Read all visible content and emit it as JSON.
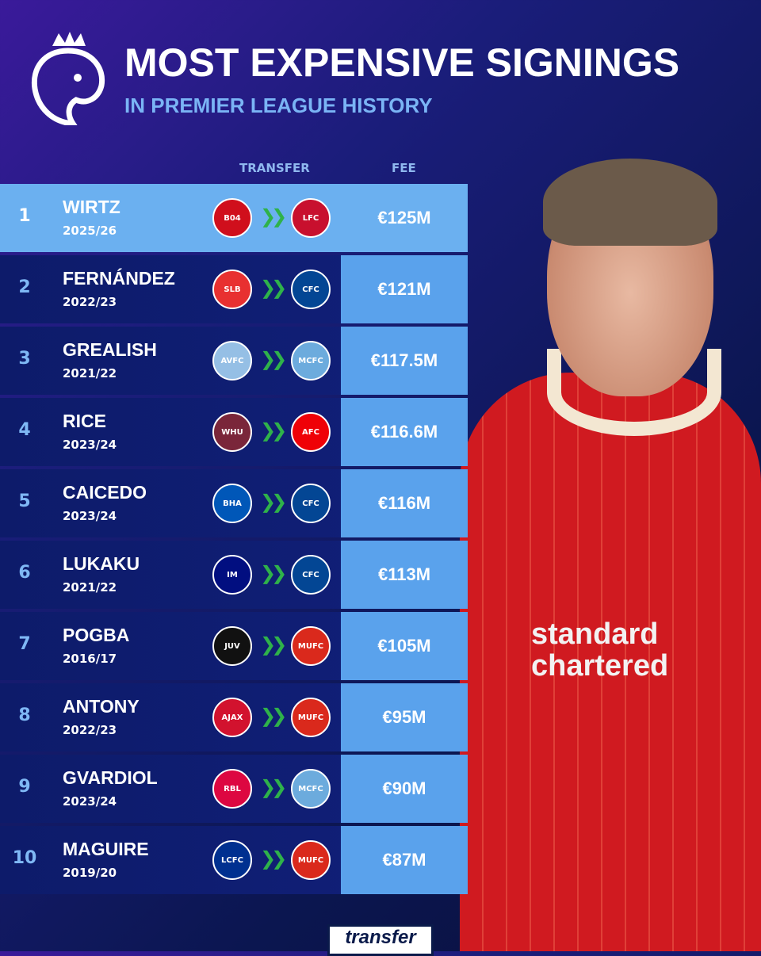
{
  "header": {
    "title": "MOST EXPENSIVE SIGNINGS",
    "subtitle": "IN PREMIER LEAGUE HISTORY"
  },
  "columns": {
    "transfer": "TRANSFER",
    "fee": "FEE"
  },
  "rows": [
    {
      "rank": "1",
      "name": "WIRTZ",
      "season": "2025/26",
      "from": "B04",
      "from_color": "#d00f1c",
      "to": "LFC",
      "to_color": "#c8102e",
      "fee": "€125M"
    },
    {
      "rank": "2",
      "name": "FERNÁNDEZ",
      "season": "2022/23",
      "from": "SLB",
      "from_color": "#e83030",
      "to": "CFC",
      "to_color": "#034694",
      "fee": "€121M"
    },
    {
      "rank": "3",
      "name": "GREALISH",
      "season": "2021/22",
      "from": "AVFC",
      "from_color": "#95bfe5",
      "to": "MCFC",
      "to_color": "#6cabdd",
      "fee": "€117.5M"
    },
    {
      "rank": "4",
      "name": "RICE",
      "season": "2023/24",
      "from": "WHU",
      "from_color": "#7a263a",
      "to": "AFC",
      "to_color": "#ef0107",
      "fee": "€116.6M"
    },
    {
      "rank": "5",
      "name": "CAICEDO",
      "season": "2023/24",
      "from": "BHA",
      "from_color": "#0057b8",
      "to": "CFC",
      "to_color": "#034694",
      "fee": "€116M"
    },
    {
      "rank": "6",
      "name": "LUKAKU",
      "season": "2021/22",
      "from": "IM",
      "from_color": "#010e80",
      "to": "CFC",
      "to_color": "#034694",
      "fee": "€113M"
    },
    {
      "rank": "7",
      "name": "POGBA",
      "season": "2016/17",
      "from": "JUV",
      "from_color": "#111111",
      "to": "MUFC",
      "to_color": "#da291c",
      "fee": "€105M"
    },
    {
      "rank": "8",
      "name": "ANTONY",
      "season": "2022/23",
      "from": "AJAX",
      "from_color": "#d2122e",
      "to": "MUFC",
      "to_color": "#da291c",
      "fee": "€95M"
    },
    {
      "rank": "9",
      "name": "GVARDIOL",
      "season": "2023/24",
      "from": "RBL",
      "from_color": "#dd0741",
      "to": "MCFC",
      "to_color": "#6cabdd",
      "fee": "€90M"
    },
    {
      "rank": "10",
      "name": "MAGUIRE",
      "season": "2019/20",
      "from": "LCFC",
      "from_color": "#003090",
      "to": "MUFC",
      "to_color": "#da291c",
      "fee": "€87M"
    }
  ],
  "player": {
    "sponsor": "standard chartered"
  },
  "footer": {
    "brand": "transfer"
  },
  "icons": {
    "logo": "premier-league-lion-icon",
    "arrow": "double-chevron-right-icon"
  }
}
